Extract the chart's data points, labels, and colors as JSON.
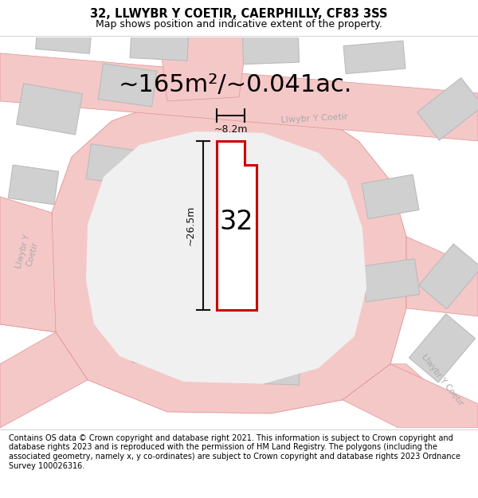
{
  "title": "32, LLWYBR Y COETIR, CAERPHILLY, CF83 3SS",
  "subtitle": "Map shows position and indicative extent of the property.",
  "area_label": "~165m²/~0.041ac.",
  "plot_number": "32",
  "width_label": "~8.2m",
  "height_label": "~26.5m",
  "footer": "Contains OS data © Crown copyright and database right 2021. This information is subject to Crown copyright and database rights 2023 and is reproduced with the permission of HM Land Registry. The polygons (including the associated geometry, namely x, y co-ordinates) are subject to Crown copyright and database rights 2023 Ordnance Survey 100026316.",
  "bg_color": "#f0f0f0",
  "road_fill": "#f5c8c8",
  "road_edge": "#e09090",
  "building_fill": "#d0d0d0",
  "building_edge": "#bbbbbb",
  "plot_fill": "#ffffff",
  "plot_edge": "#cc0000",
  "street_label_color": "#aaaaaa",
  "dimension_color": "#111111",
  "title_fontsize": 10.5,
  "subtitle_fontsize": 9,
  "area_fontsize": 22,
  "plot_number_fontsize": 24,
  "footer_fontsize": 7.0
}
